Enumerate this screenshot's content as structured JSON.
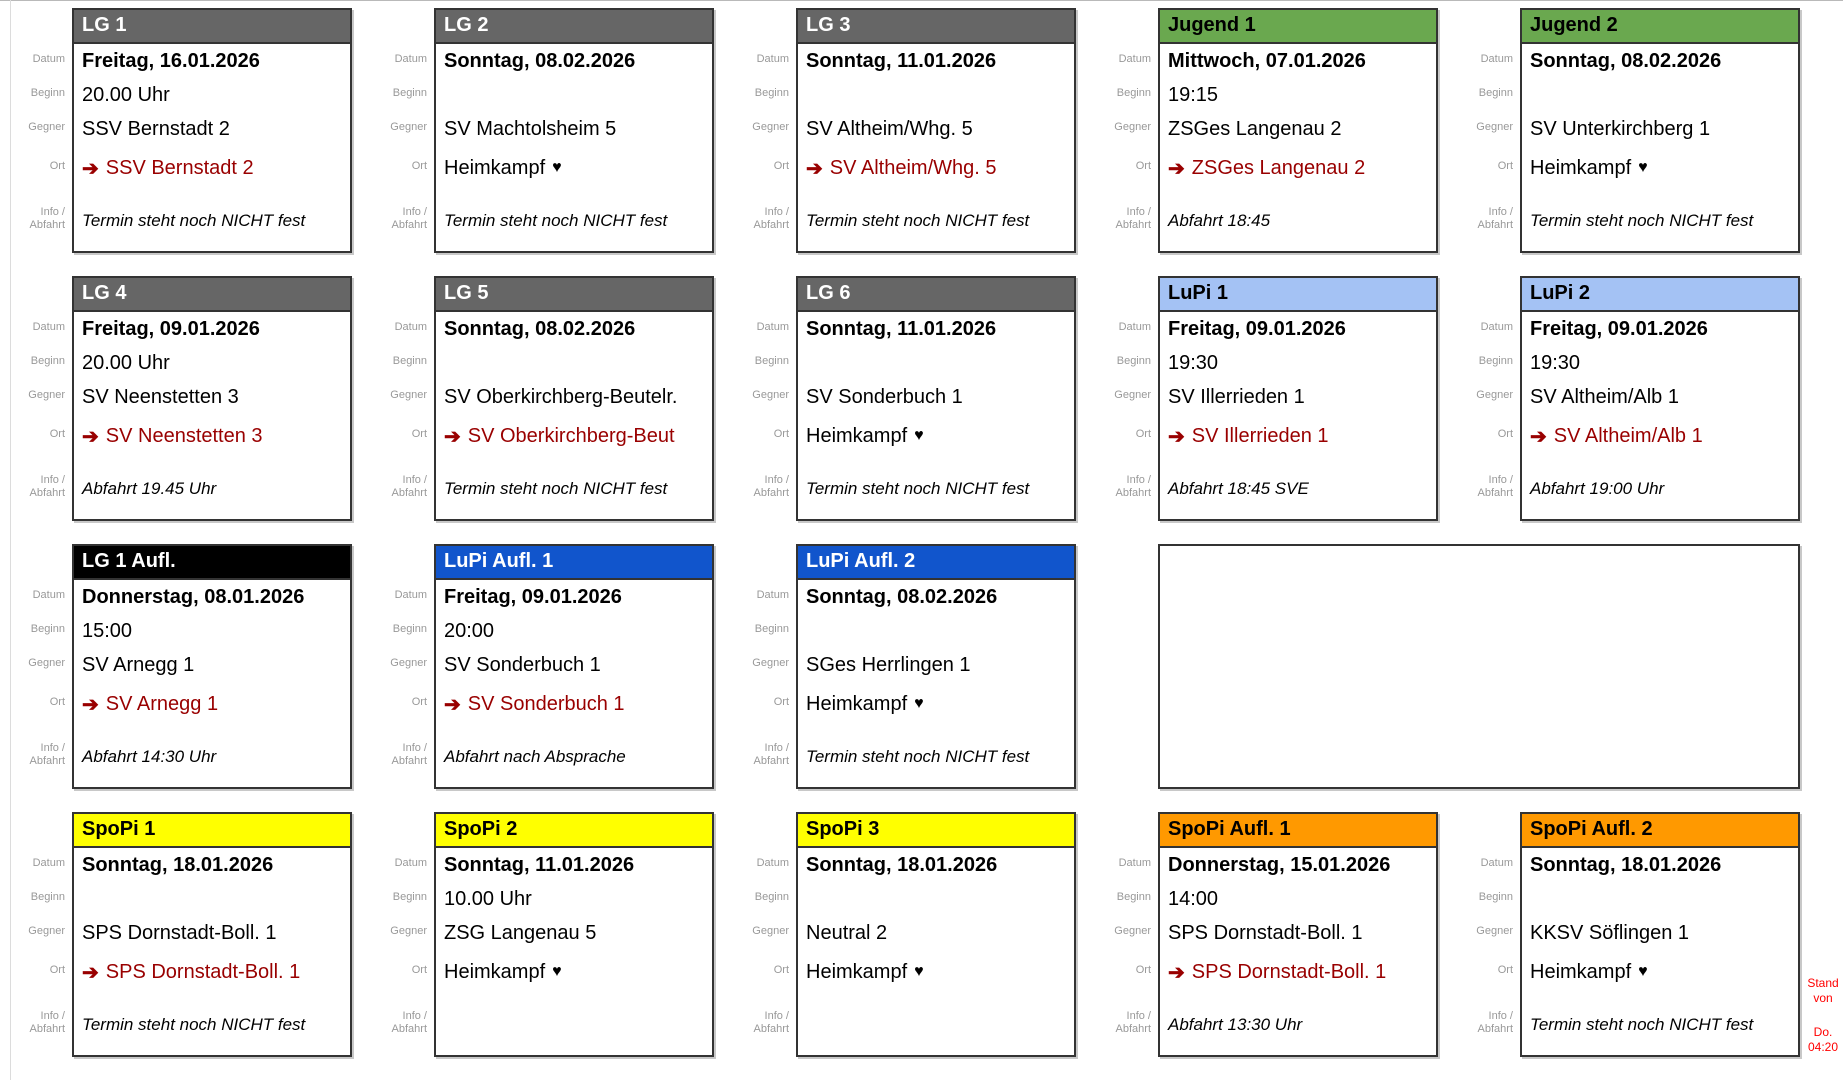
{
  "labels": {
    "datum": "Datum",
    "beginn": "Beginn",
    "gegner": "Gegner",
    "ort": "Ort",
    "info1": "Info /",
    "info2": "Abfahrt"
  },
  "icons": {
    "arrow": "➔",
    "heart": "♥"
  },
  "colors": {
    "lg_header": "#666666",
    "jugend_header": "#6aa84f",
    "lupi_header": "#a4c2f4",
    "lg_aufl_header": "#000000",
    "lupi_aufl_header": "#1155cc",
    "spopi_header": "#ffff00",
    "spopi_aufl_header": "#ff9900",
    "away_text": "#990000",
    "stand_text": "#ff0000"
  },
  "stand": {
    "line1": "Stand",
    "line2": "von",
    "line3": "Do.",
    "line4": "04:20"
  },
  "rows": [
    [
      {
        "id": "lg-1",
        "title": "LG 1",
        "header_bg": "#666666",
        "header_fg": "#ffffff",
        "datum": "Freitag, 16.01.2026",
        "beginn": "20.00 Uhr",
        "gegner": "SSV Bernstadt 2",
        "ort_type": "away",
        "ort": "SSV Bernstadt 2",
        "info": "Termin steht noch NICHT fest"
      },
      {
        "id": "lg-2",
        "title": "LG 2",
        "header_bg": "#666666",
        "header_fg": "#ffffff",
        "datum": "Sonntag, 08.02.2026",
        "beginn": "",
        "gegner": "SV Machtolsheim 5",
        "ort_type": "home",
        "ort": "Heimkampf",
        "info": "Termin steht noch NICHT fest"
      },
      {
        "id": "lg-3",
        "title": "LG 3",
        "header_bg": "#666666",
        "header_fg": "#ffffff",
        "datum": "Sonntag, 11.01.2026",
        "beginn": "",
        "gegner": "SV Altheim/Whg. 5",
        "ort_type": "away",
        "ort": "SV Altheim/Whg. 5",
        "info": "Termin steht noch NICHT fest"
      },
      {
        "id": "jugend-1",
        "title": "Jugend 1",
        "header_bg": "#6aa84f",
        "header_fg": "#000000",
        "datum": "Mittwoch, 07.01.2026",
        "beginn": "19:15",
        "gegner": "ZSGes Langenau 2",
        "ort_type": "away",
        "ort": "ZSGes Langenau 2",
        "info": "Abfahrt 18:45"
      },
      {
        "id": "jugend-2",
        "title": "Jugend 2",
        "header_bg": "#6aa84f",
        "header_fg": "#000000",
        "datum": "Sonntag, 08.02.2026",
        "beginn": "",
        "gegner": "SV Unterkirchberg 1",
        "ort_type": "home",
        "ort": "Heimkampf",
        "info": "Termin steht noch NICHT fest"
      }
    ],
    [
      {
        "id": "lg-4",
        "title": "LG 4",
        "header_bg": "#666666",
        "header_fg": "#ffffff",
        "datum": "Freitag, 09.01.2026",
        "beginn": "20.00 Uhr",
        "gegner": "SV Neenstetten 3",
        "ort_type": "away",
        "ort": "SV Neenstetten 3",
        "info": "Abfahrt 19.45 Uhr"
      },
      {
        "id": "lg-5",
        "title": "LG 5",
        "header_bg": "#666666",
        "header_fg": "#ffffff",
        "datum": "Sonntag, 08.02.2026",
        "beginn": "",
        "gegner": "SV Oberkirchberg-Beutelr.",
        "ort_type": "away",
        "ort": "SV Oberkirchberg-Beut",
        "info": "Termin steht noch NICHT fest"
      },
      {
        "id": "lg-6",
        "title": "LG 6",
        "header_bg": "#666666",
        "header_fg": "#ffffff",
        "datum": "Sonntag, 11.01.2026",
        "beginn": "",
        "gegner": "SV Sonderbuch 1",
        "ort_type": "home",
        "ort": "Heimkampf",
        "info": "Termin steht noch NICHT fest"
      },
      {
        "id": "lupi-1",
        "title": "LuPi 1",
        "header_bg": "#a4c2f4",
        "header_fg": "#000000",
        "datum": "Freitag, 09.01.2026",
        "beginn": "19:30",
        "gegner": "SV Illerrieden 1",
        "ort_type": "away",
        "ort": "SV Illerrieden 1",
        "info": "Abfahrt 18:45 SVE"
      },
      {
        "id": "lupi-2",
        "title": "LuPi 2",
        "header_bg": "#a4c2f4",
        "header_fg": "#000000",
        "datum": "Freitag, 09.01.2026",
        "beginn": "19:30",
        "gegner": "SV Altheim/Alb 1",
        "ort_type": "away",
        "ort": "SV Altheim/Alb 1",
        "info": "Abfahrt 19:00 Uhr"
      }
    ],
    [
      {
        "id": "lg-1-aufl",
        "title": "LG 1 Aufl.",
        "header_bg": "#000000",
        "header_fg": "#ffffff",
        "datum": "Donnerstag, 08.01.2026",
        "beginn": "15:00",
        "gegner": "SV Arnegg 1",
        "ort_type": "away",
        "ort": "SV Arnegg 1",
        "info": "Abfahrt 14:30 Uhr"
      },
      {
        "id": "lupi-aufl-1",
        "title": "LuPi Aufl. 1",
        "header_bg": "#1155cc",
        "header_fg": "#ffffff",
        "datum": "Freitag, 09.01.2026",
        "beginn": "20:00",
        "gegner": "SV Sonderbuch 1",
        "ort_type": "away",
        "ort": "SV Sonderbuch 1",
        "info": "Abfahrt nach Absprache"
      },
      {
        "id": "lupi-aufl-2",
        "title": "LuPi Aufl. 2",
        "header_bg": "#1155cc",
        "header_fg": "#ffffff",
        "datum": "Sonntag, 08.02.2026",
        "beginn": "",
        "gegner": "SGes Herrlingen 1",
        "ort_type": "home",
        "ort": "Heimkampf",
        "info": "Termin steht noch NICHT fest"
      },
      {
        "type": "empty_wide"
      }
    ],
    [
      {
        "id": "spopi-1",
        "title": "SpoPi 1",
        "header_bg": "#ffff00",
        "header_fg": "#000000",
        "datum": "Sonntag, 18.01.2026",
        "beginn": "",
        "gegner": "SPS Dornstadt-Boll. 1",
        "ort_type": "away",
        "ort": "SPS Dornstadt-Boll. 1",
        "info": "Termin steht noch NICHT fest"
      },
      {
        "id": "spopi-2",
        "title": "SpoPi 2",
        "header_bg": "#ffff00",
        "header_fg": "#000000",
        "datum": "Sonntag, 11.01.2026",
        "beginn": "10.00 Uhr",
        "gegner": "ZSG Langenau 5",
        "ort_type": "home",
        "ort": "Heimkampf",
        "info": ""
      },
      {
        "id": "spopi-3",
        "title": "SpoPi 3",
        "header_bg": "#ffff00",
        "header_fg": "#000000",
        "datum": "Sonntag, 18.01.2026",
        "beginn": "",
        "gegner": "Neutral 2",
        "ort_type": "home",
        "ort": "Heimkampf",
        "info": ""
      },
      {
        "id": "spopi-aufl-1",
        "title": "SpoPi Aufl. 1",
        "header_bg": "#ff9900",
        "header_fg": "#000000",
        "datum": "Donnerstag, 15.01.2026",
        "beginn": "14:00",
        "gegner": "SPS Dornstadt-Boll. 1",
        "ort_type": "away",
        "ort": "SPS Dornstadt-Boll. 1",
        "info": "Abfahrt 13:30 Uhr"
      },
      {
        "id": "spopi-aufl-2",
        "title": "SpoPi Aufl. 2",
        "header_bg": "#ff9900",
        "header_fg": "#000000",
        "datum": "Sonntag, 18.01.2026",
        "beginn": "",
        "gegner": "KKSV Söflingen 1",
        "ort_type": "home",
        "ort": "Heimkampf",
        "info": "Termin steht noch NICHT fest"
      }
    ]
  ]
}
